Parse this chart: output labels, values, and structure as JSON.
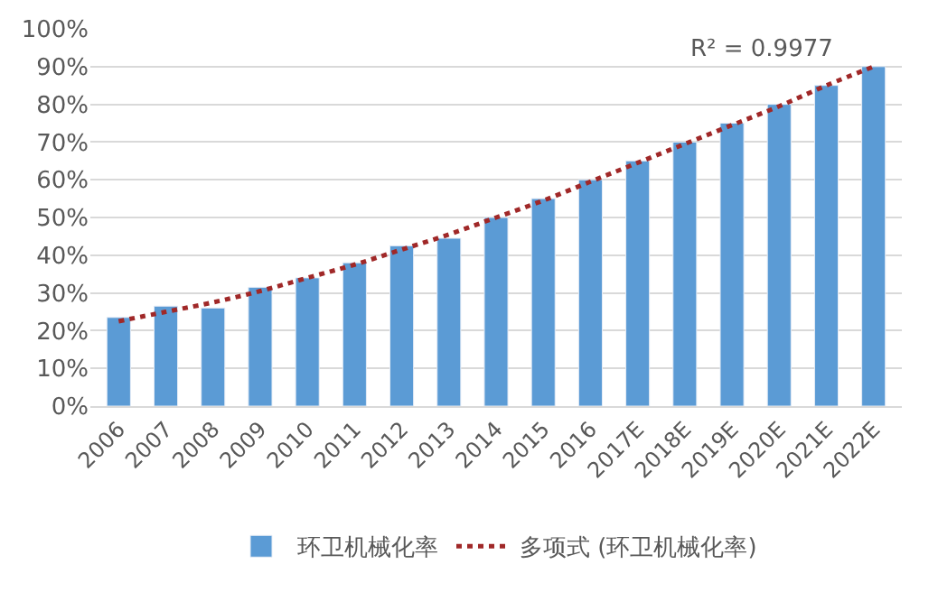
{
  "chart_data": {
    "type": "bar",
    "categories": [
      "2006",
      "2007",
      "2008",
      "2009",
      "2010",
      "2011",
      "2012",
      "2013",
      "2014",
      "2015",
      "2016",
      "2017E",
      "2018E",
      "2019E",
      "2020E",
      "2021E",
      "2022E"
    ],
    "series": [
      {
        "name": "环卫机械化率",
        "color": "#5b9bd5",
        "values": [
          23.5,
          26.5,
          26,
          31.5,
          34,
          38,
          42.5,
          44.5,
          50,
          55,
          60,
          65,
          70,
          75,
          80,
          85,
          90
        ]
      },
      {
        "name": "多项式 (环卫机械化率)",
        "type": "line",
        "color": "#a02828",
        "line_style": "dotted",
        "marker": "none",
        "values": [
          22.5,
          25,
          27.5,
          30.5,
          34,
          37.5,
          41.5,
          45.5,
          50,
          54.5,
          59.5,
          64.5,
          69.5,
          74.5,
          79.5,
          85,
          90
        ]
      }
    ],
    "annotations": [
      "R² = 0.9977"
    ],
    "ylim": [
      0,
      100
    ],
    "yticks": [
      {
        "value": 0,
        "label": "0%"
      },
      {
        "value": 10,
        "label": "10%"
      },
      {
        "value": 20,
        "label": "20%"
      },
      {
        "value": 30,
        "label": "30%"
      },
      {
        "value": 40,
        "label": "40%"
      },
      {
        "value": 50,
        "label": "50%"
      },
      {
        "value": 60,
        "label": "60%"
      },
      {
        "value": 70,
        "label": "70%"
      },
      {
        "value": 80,
        "label": "80%"
      },
      {
        "value": 90,
        "label": "90%"
      },
      {
        "value": 100,
        "label": "100%"
      }
    ],
    "grid": "y",
    "legend": "bottom"
  }
}
